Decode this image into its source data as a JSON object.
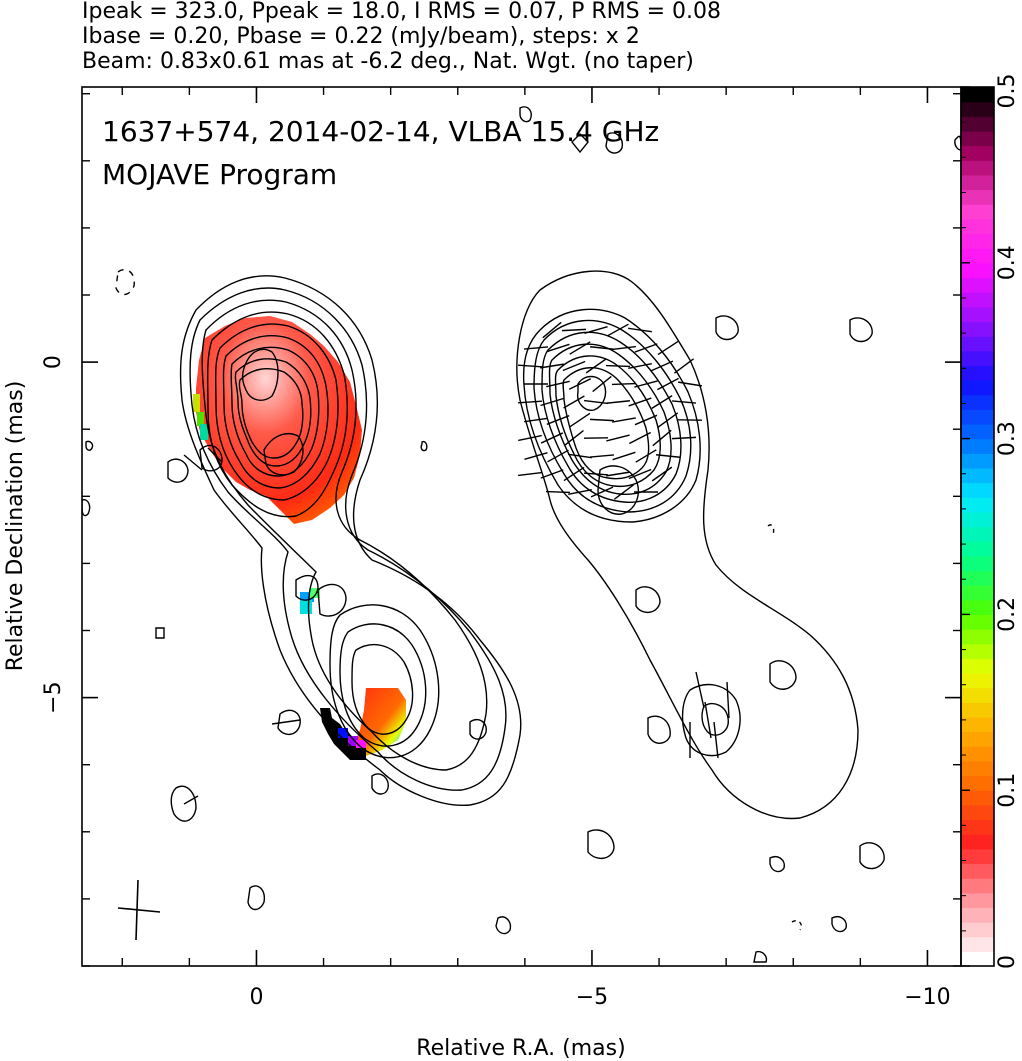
{
  "header": {
    "line1": "Ipeak = 323.0, Ppeak = 18.0, I RMS = 0.07, P RMS = 0.08",
    "line2": "Ibase = 0.20, Pbase = 0.22 (mJy/beam), steps: x 2",
    "line3": "Beam: 0.83x0.61 mas at -6.2 deg., Nat. Wgt. (no taper)"
  },
  "plot": {
    "title_line1": "1637+574, 2014-02-14, VLBA 15.4 GHz",
    "title_line2": "MOJAVE Program"
  },
  "chart_data": {
    "type": "contour-map",
    "xlabel": "Relative R.A. (mas)",
    "ylabel": "Relative Declination (mas)",
    "xlim": [
      2.6,
      -10.5
    ],
    "ylim": [
      -9.0,
      4.1
    ],
    "x_ticks": [
      {
        "value": 0,
        "label": "0"
      },
      {
        "value": -5,
        "label": "−5"
      },
      {
        "value": -10,
        "label": "−10"
      }
    ],
    "y_ticks": [
      {
        "value": 0,
        "label": "0"
      },
      {
        "value": -5,
        "label": "−5"
      }
    ],
    "colorbar": {
      "min": 0,
      "max": 0.5,
      "ticks": [
        {
          "value": 0,
          "label": "0"
        },
        {
          "value": 0.1,
          "label": "0.1"
        },
        {
          "value": 0.2,
          "label": "0.2"
        },
        {
          "value": 0.3,
          "label": "0.3"
        },
        {
          "value": 0.4,
          "label": "0.4"
        },
        {
          "value": 0.5,
          "label": "0.5"
        }
      ],
      "stops": [
        "#ffffff",
        "#ff9aa0",
        "#ff2020",
        "#ff6a00",
        "#ffb000",
        "#e8ff00",
        "#50ff00",
        "#00ff90",
        "#00e8ff",
        "#0070ff",
        "#1010ff",
        "#9010ff",
        "#ff10ff",
        "#ff40d0",
        "#a00060",
        "#000000"
      ]
    },
    "beam": {
      "major": 0.83,
      "minor": 0.61,
      "pa_deg": -6.2
    },
    "colors": {
      "contour": "#000000",
      "core_red": "#ff2a1a",
      "core_highlight": "#ffd0d0"
    }
  }
}
